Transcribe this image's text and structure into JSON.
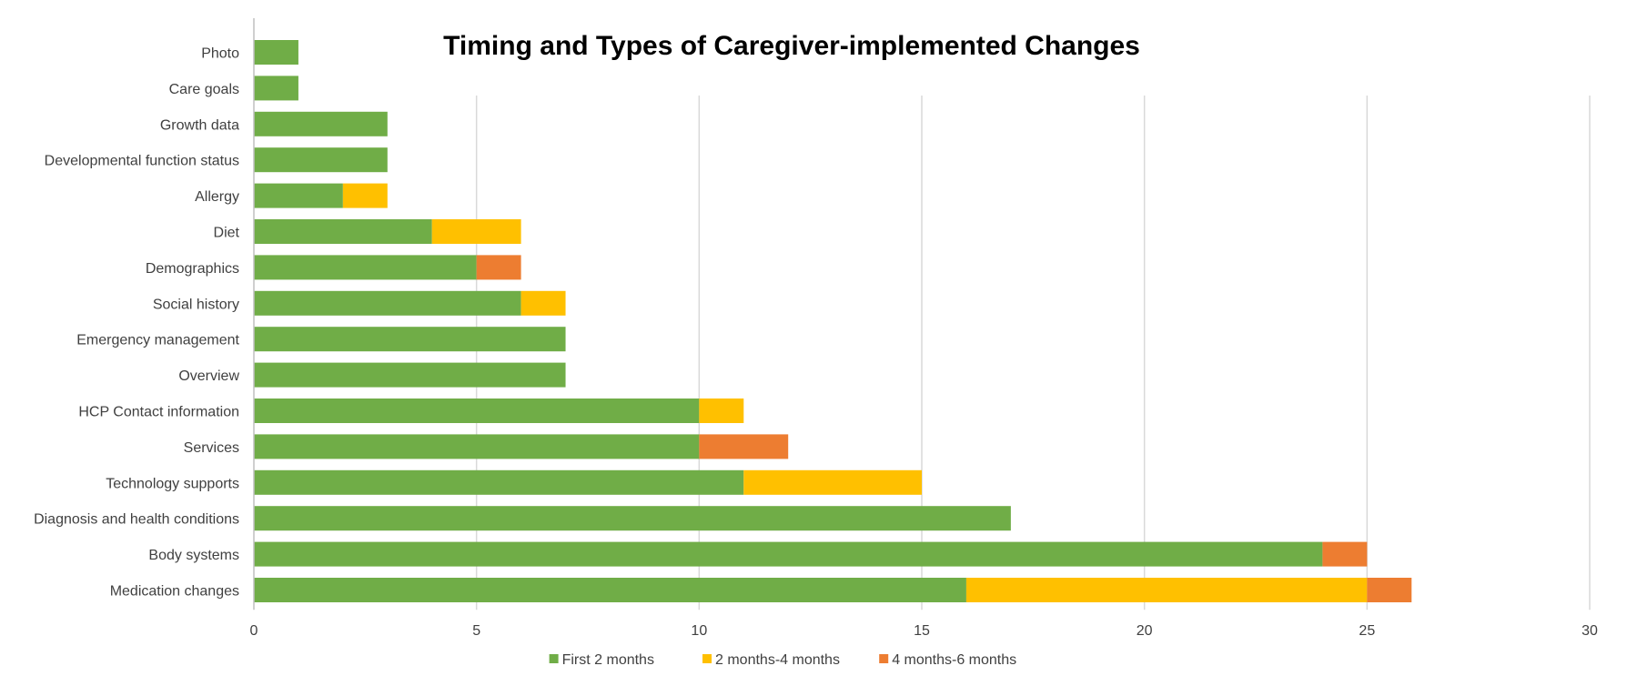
{
  "chart_data": {
    "type": "bar",
    "orientation": "horizontal",
    "stacked": true,
    "title": "Timing and Types of Caregiver-implemented Changes",
    "xlim": [
      0,
      30
    ],
    "x_ticks": [
      0,
      5,
      10,
      15,
      20,
      25,
      30
    ],
    "grid": true,
    "legend_position": "bottom",
    "categories": [
      "Photo",
      "Care goals",
      "Growth data",
      "Developmental function status",
      "Allergy",
      "Diet",
      "Demographics",
      "Social history",
      "Emergency management",
      "Overview",
      "HCP Contact information",
      "Services",
      "Technology supports",
      "Diagnosis and health conditions",
      "Body systems",
      "Medication changes"
    ],
    "series": [
      {
        "name": "First 2 months",
        "color": "#70ad47",
        "values": [
          1,
          1,
          3,
          3,
          2,
          4,
          5,
          6,
          7,
          7,
          10,
          10,
          11,
          17,
          24,
          16
        ]
      },
      {
        "name": "2 months-4 months",
        "color": "#ffc000",
        "values": [
          0,
          0,
          0,
          0,
          1,
          2,
          0,
          1,
          0,
          0,
          1,
          0,
          4,
          0,
          0,
          9
        ]
      },
      {
        "name": "4 months-6 months",
        "color": "#ed7d31",
        "values": [
          0,
          0,
          0,
          0,
          0,
          0,
          1,
          0,
          0,
          0,
          0,
          2,
          0,
          0,
          1,
          1
        ]
      }
    ]
  }
}
